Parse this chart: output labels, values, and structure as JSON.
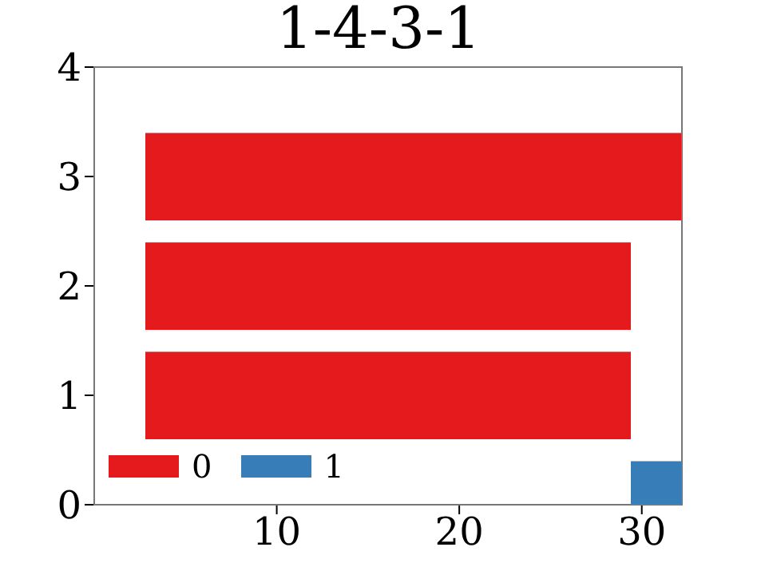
{
  "chart_data": {
    "type": "bar",
    "title": "1-4-3-1",
    "orientation": "horizontal",
    "x": [
      0,
      1,
      2,
      3
    ],
    "series": [
      {
        "name": "0",
        "color": "#e41a1c",
        "values": [
          null,
          26.6,
          26.6,
          29.4
        ],
        "base": [
          null,
          2.8,
          2.8,
          2.8
        ]
      },
      {
        "name": "1",
        "color": "#377eb8",
        "values": [
          2.8,
          null,
          null,
          null
        ],
        "base": [
          29.4,
          null,
          null,
          null
        ]
      }
    ],
    "xlim": [
      0,
      32.2
    ],
    "xticks": [
      10,
      20,
      30
    ],
    "ylim": [
      0,
      4
    ],
    "yticks": [
      0,
      1,
      2,
      3,
      4
    ],
    "grid": false,
    "legend": "bottom left"
  }
}
